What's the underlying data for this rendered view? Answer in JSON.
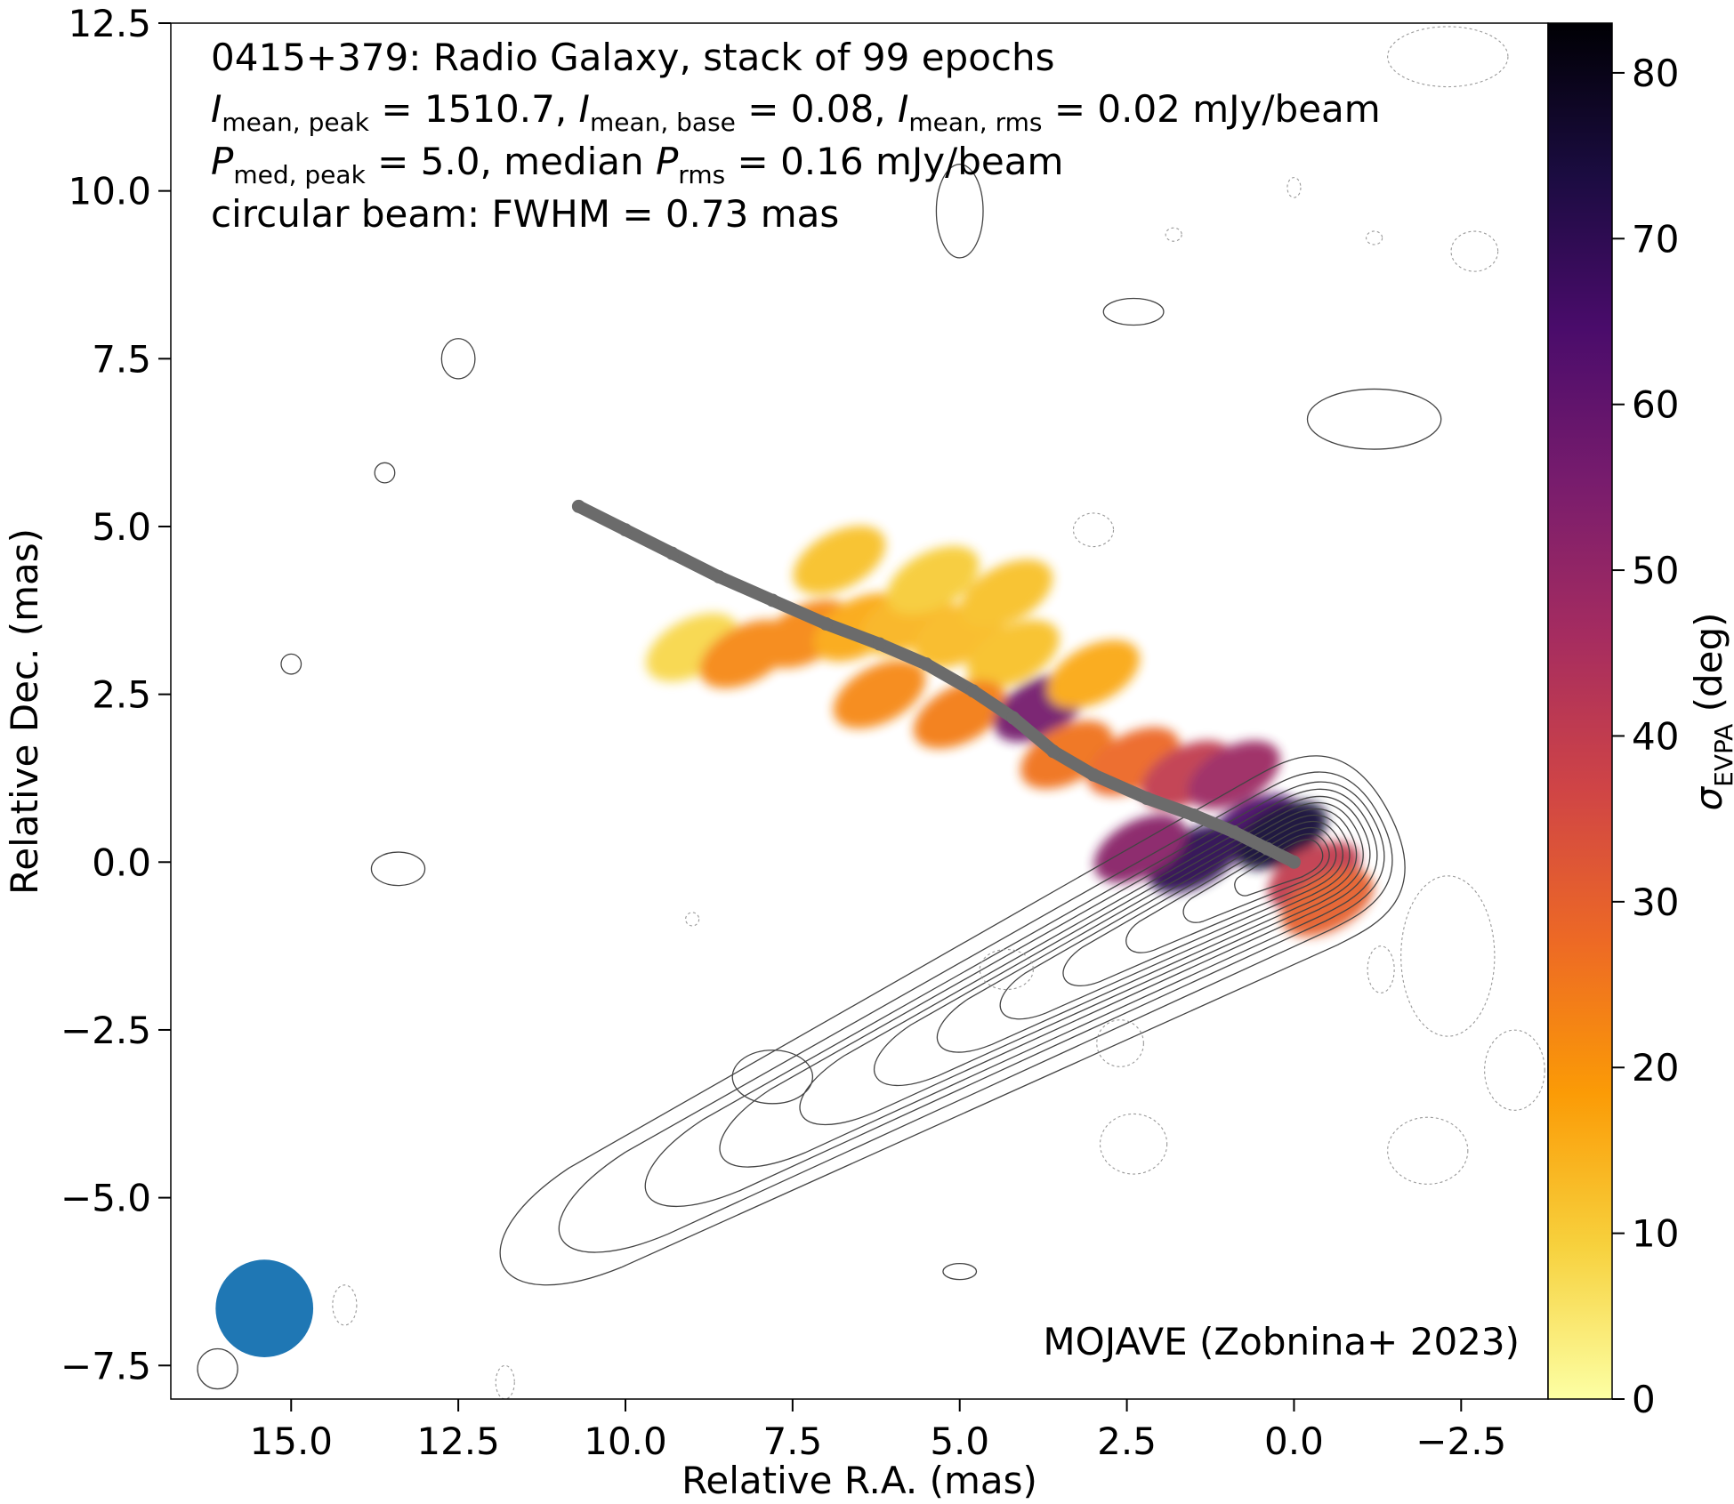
{
  "chart_data": {
    "type": "heatmap",
    "source": "0415+379",
    "info_lines": [
      "0415+379: Radio Galaxy, stack of 99 epochs",
      "I_mean,peak = 1510.7, I_mean,base = 0.08, I_mean,rms = 0.02 mJy/beam",
      "P_med,peak = 5.0, median P_rms = 0.16 mJy/beam",
      "circular beam: FWHM = 0.73 mas"
    ],
    "info": {
      "line1": "0415+379: Radio Galaxy, stack of 99 epochs",
      "I_sym": "I",
      "I_sub_peak": "mean, peak",
      "I_sub_base": "mean, base",
      "I_sub_rms": "mean, rms",
      "I_peak_val": " = 1510.7, ",
      "I_base_val": " = 0.08, ",
      "I_rms_val": " = 0.02 mJy/beam",
      "P_sym": "P",
      "P_sub_peak": "med, peak",
      "P_sub_rms": "rms",
      "P_peak_val": " = 5.0, median ",
      "P_rms_val": " = 0.16 mJy/beam",
      "line4": "circular beam: FWHM = 0.73 mas"
    },
    "credit": "MOJAVE (Zobnina+ 2023)",
    "xlabel": "Relative R.A. (mas)",
    "ylabel": "Relative Dec. (mas)",
    "xlim": [
      16.8,
      -3.8
    ],
    "ylim": [
      -8.0,
      12.5
    ],
    "xticks": [
      15.0,
      12.5,
      10.0,
      7.5,
      5.0,
      2.5,
      0.0,
      -2.5
    ],
    "xtick_labels": [
      "15.0",
      "12.5",
      "10.0",
      "7.5",
      "5.0",
      "2.5",
      "0.0",
      "−2.5"
    ],
    "yticks": [
      12.5,
      10.0,
      7.5,
      5.0,
      2.5,
      0.0,
      -2.5,
      -5.0,
      -7.5
    ],
    "ytick_labels": [
      "12.5",
      "10.0",
      "7.5",
      "5.0",
      "2.5",
      "0.0",
      "−2.5",
      "−5.0",
      "−7.5"
    ],
    "colorbar": {
      "label_sym": "σ",
      "label_sub": "EVPA",
      "label_unit": " (deg)",
      "range": [
        0,
        83
      ],
      "ticks": [
        0,
        10,
        20,
        30,
        40,
        50,
        60,
        70,
        80
      ],
      "tick_labels": [
        "0",
        "10",
        "20",
        "30",
        "40",
        "50",
        "60",
        "70",
        "80"
      ],
      "colormap": "inferno_r",
      "colormap_stops": [
        "#fcffa4",
        "#f7d13d",
        "#fb9b06",
        "#ed6925",
        "#cf4446",
        "#a52c60",
        "#781c6d",
        "#4a0c6b",
        "#1b0c41",
        "#000004"
      ]
    },
    "ridgeline": {
      "color": "#6b6b6b",
      "points": [
        [
          0.0,
          0.0
        ],
        [
          0.4,
          0.2
        ],
        [
          0.9,
          0.45
        ],
        [
          1.5,
          0.7
        ],
        [
          2.2,
          0.95
        ],
        [
          3.0,
          1.3
        ],
        [
          3.6,
          1.65
        ],
        [
          4.2,
          2.15
        ],
        [
          4.8,
          2.55
        ],
        [
          5.5,
          2.95
        ],
        [
          6.2,
          3.25
        ],
        [
          7.0,
          3.55
        ],
        [
          7.8,
          3.9
        ],
        [
          8.6,
          4.25
        ],
        [
          9.3,
          4.6
        ],
        [
          10.0,
          4.95
        ],
        [
          10.7,
          5.3
        ]
      ]
    },
    "beam": {
      "x": 15.4,
      "y": -6.65,
      "fwhm_mas": 0.73,
      "color": "#1f77b4"
    },
    "contours": {
      "color": "#444444",
      "center": [
        0.0,
        0.0
      ],
      "position_angle_deg": -28,
      "levels": [
        {
          "back_extent": 13.8,
          "front_extent": 1.6,
          "half_width": 1.4
        },
        {
          "back_extent": 12.8,
          "front_extent": 1.45,
          "half_width": 1.15
        },
        {
          "back_extent": 11.3,
          "front_extent": 1.35,
          "half_width": 1.0
        },
        {
          "back_extent": 10.0,
          "front_extent": 1.25,
          "half_width": 0.9
        },
        {
          "back_extent": 8.6,
          "front_extent": 1.15,
          "half_width": 0.8
        },
        {
          "back_extent": 7.3,
          "front_extent": 1.05,
          "half_width": 0.72
        },
        {
          "back_extent": 6.2,
          "front_extent": 0.95,
          "half_width": 0.64
        },
        {
          "back_extent": 5.1,
          "front_extent": 0.85,
          "half_width": 0.56
        },
        {
          "back_extent": 4.0,
          "front_extent": 0.75,
          "half_width": 0.48
        },
        {
          "back_extent": 2.9,
          "front_extent": 0.65,
          "half_width": 0.4
        },
        {
          "back_extent": 1.9,
          "front_extent": 0.55,
          "half_width": 0.32
        },
        {
          "back_extent": 1.0,
          "front_extent": 0.45,
          "half_width": 0.25
        }
      ],
      "islands": [
        {
          "x": 5.0,
          "y": 9.7,
          "rx": 0.35,
          "ry": 0.7,
          "dashed": false
        },
        {
          "x": 2.4,
          "y": 8.2,
          "rx": 0.45,
          "ry": 0.2,
          "dashed": false
        },
        {
          "x": 12.5,
          "y": 7.5,
          "rx": 0.25,
          "ry": 0.3,
          "dashed": false
        },
        {
          "x": -1.2,
          "y": 6.6,
          "rx": 1.0,
          "ry": 0.45,
          "dashed": false
        },
        {
          "x": 13.6,
          "y": 5.8,
          "rx": 0.15,
          "ry": 0.15,
          "dashed": false
        },
        {
          "x": 15.0,
          "y": 2.95,
          "rx": 0.15,
          "ry": 0.15,
          "dashed": false
        },
        {
          "x": 13.4,
          "y": -0.1,
          "rx": 0.4,
          "ry": 0.25,
          "dashed": false
        },
        {
          "x": 7.8,
          "y": -3.2,
          "rx": 0.6,
          "ry": 0.4,
          "dashed": false
        },
        {
          "x": 5.0,
          "y": -6.1,
          "rx": 0.25,
          "ry": 0.12,
          "dashed": false
        },
        {
          "x": 16.1,
          "y": -7.55,
          "rx": 0.3,
          "ry": 0.3,
          "dashed": false
        },
        {
          "x": -2.3,
          "y": 12.0,
          "rx": 0.9,
          "ry": 0.45,
          "dashed": true
        },
        {
          "x": 3.0,
          "y": 4.95,
          "rx": 0.3,
          "ry": 0.25,
          "dashed": true
        },
        {
          "x": -2.3,
          "y": -1.4,
          "rx": 0.7,
          "ry": 1.2,
          "dashed": true
        },
        {
          "x": 4.3,
          "y": -1.6,
          "rx": 0.4,
          "ry": 0.3,
          "dashed": true
        },
        {
          "x": 2.6,
          "y": -2.7,
          "rx": 0.35,
          "ry": 0.35,
          "dashed": true
        },
        {
          "x": 2.4,
          "y": -4.2,
          "rx": 0.5,
          "ry": 0.45,
          "dashed": true
        },
        {
          "x": -2.0,
          "y": -4.3,
          "rx": 0.6,
          "ry": 0.5,
          "dashed": true
        },
        {
          "x": -3.3,
          "y": -3.1,
          "rx": 0.45,
          "ry": 0.6,
          "dashed": true
        },
        {
          "x": -1.3,
          "y": -1.6,
          "rx": 0.2,
          "ry": 0.35,
          "dashed": true
        },
        {
          "x": 14.2,
          "y": -6.6,
          "rx": 0.18,
          "ry": 0.3,
          "dashed": true
        },
        {
          "x": 11.8,
          "y": -7.75,
          "rx": 0.14,
          "ry": 0.25,
          "dashed": true
        },
        {
          "x": 9.0,
          "y": -0.85,
          "rx": 0.1,
          "ry": 0.1,
          "dashed": true
        },
        {
          "x": 0.0,
          "y": 10.05,
          "rx": 0.1,
          "ry": 0.15,
          "dashed": true
        },
        {
          "x": -1.2,
          "y": 9.3,
          "rx": 0.12,
          "ry": 0.1,
          "dashed": true
        },
        {
          "x": -2.7,
          "y": 9.1,
          "rx": 0.35,
          "ry": 0.3,
          "dashed": true
        },
        {
          "x": 1.8,
          "y": 9.35,
          "rx": 0.12,
          "ry": 0.1,
          "dashed": true
        }
      ]
    },
    "evpa_map": {
      "note": "sigma_EVPA pixel values along jet, degrees",
      "samples": [
        {
          "x": 9.0,
          "y": 3.2,
          "v": 8
        },
        {
          "x": 8.2,
          "y": 3.1,
          "v": 22
        },
        {
          "x": 7.3,
          "y": 3.4,
          "v": 22
        },
        {
          "x": 6.5,
          "y": 3.5,
          "v": 16
        },
        {
          "x": 5.8,
          "y": 3.6,
          "v": 14
        },
        {
          "x": 5.0,
          "y": 3.4,
          "v": 13
        },
        {
          "x": 4.2,
          "y": 3.1,
          "v": 12
        },
        {
          "x": 6.2,
          "y": 2.5,
          "v": 22
        },
        {
          "x": 5.0,
          "y": 2.2,
          "v": 24
        },
        {
          "x": 3.8,
          "y": 2.3,
          "v": 56
        },
        {
          "x": 3.4,
          "y": 1.6,
          "v": 26
        },
        {
          "x": 2.4,
          "y": 1.5,
          "v": 28
        },
        {
          "x": 1.6,
          "y": 1.3,
          "v": 40
        },
        {
          "x": 0.9,
          "y": 1.3,
          "v": 48
        },
        {
          "x": 0.6,
          "y": 0.5,
          "v": 65
        },
        {
          "x": 0.2,
          "y": 0.4,
          "v": 75
        },
        {
          "x": 1.5,
          "y": 0.05,
          "v": 70
        },
        {
          "x": 2.3,
          "y": 0.2,
          "v": 52
        },
        {
          "x": -0.3,
          "y": -0.2,
          "v": 40
        },
        {
          "x": -0.5,
          "y": -0.6,
          "v": 30
        },
        {
          "x": 6.8,
          "y": 4.5,
          "v": 12
        },
        {
          "x": 5.4,
          "y": 4.2,
          "v": 10
        },
        {
          "x": 4.3,
          "y": 4.0,
          "v": 12
        },
        {
          "x": 3.0,
          "y": 2.8,
          "v": 16
        }
      ]
    }
  }
}
